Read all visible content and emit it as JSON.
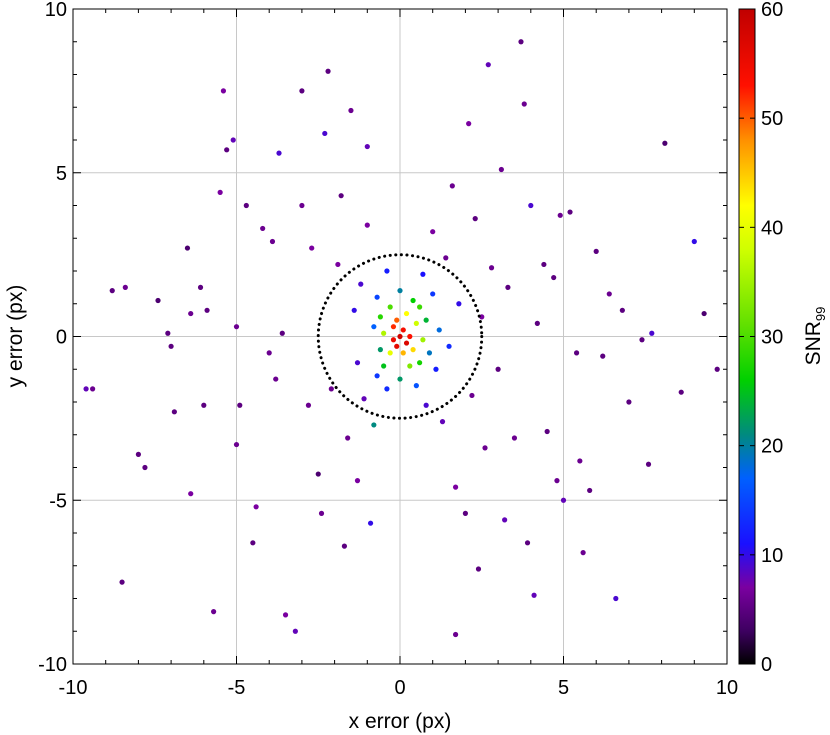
{
  "chart_data": {
    "type": "scatter",
    "title": "",
    "xlabel": "x error (px)",
    "ylabel": "y error (px)",
    "xlim": [
      -10,
      10
    ],
    "ylim": [
      -10,
      10
    ],
    "xticks": [
      -10,
      -5,
      0,
      5,
      10
    ],
    "yticks": [
      -10,
      -5,
      0,
      5,
      10
    ],
    "xtick_labels": [
      "-10",
      "-5",
      "0",
      "5",
      "10"
    ],
    "ytick_labels": [
      "-10",
      "-5",
      "0",
      "5",
      "10"
    ],
    "grid": true,
    "colorbar": {
      "label_main": "SNR",
      "label_sub": "99",
      "range": [
        0,
        60
      ],
      "ticks": [
        0,
        10,
        20,
        30,
        40,
        50,
        60
      ],
      "tick_labels": [
        "0",
        "10",
        "20",
        "30",
        "40",
        "50",
        "60"
      ],
      "colormap_stops": [
        {
          "value": 0,
          "color": "#000000"
        },
        {
          "value": 3,
          "color": "#3d0060"
        },
        {
          "value": 7,
          "color": "#7a00a0"
        },
        {
          "value": 11,
          "color": "#1a10ff"
        },
        {
          "value": 17,
          "color": "#0060ff"
        },
        {
          "value": 21,
          "color": "#008a80"
        },
        {
          "value": 26,
          "color": "#00d000"
        },
        {
          "value": 31,
          "color": "#60e000"
        },
        {
          "value": 38,
          "color": "#d0ff00"
        },
        {
          "value": 42,
          "color": "#ffff00"
        },
        {
          "value": 48,
          "color": "#ff9000"
        },
        {
          "value": 53,
          "color": "#ff1000"
        },
        {
          "value": 60,
          "color": "#c00000"
        }
      ]
    },
    "circle": {
      "center": [
        0,
        0
      ],
      "radius": 2.5,
      "style": "dotted",
      "color": "#000000"
    },
    "series": [
      {
        "points": [
          [
            -9.6,
            -1.6,
            8
          ],
          [
            -9.4,
            -1.6,
            6
          ],
          [
            -8.8,
            1.4,
            5
          ],
          [
            -8.4,
            1.5,
            6
          ],
          [
            -8.5,
            -7.5,
            5
          ],
          [
            -8.0,
            -3.6,
            5
          ],
          [
            -7.8,
            -4.0,
            5
          ],
          [
            -7.4,
            1.1,
            4
          ],
          [
            -7.1,
            0.1,
            5
          ],
          [
            -7.0,
            -0.3,
            5
          ],
          [
            -6.9,
            -2.3,
            5
          ],
          [
            -6.5,
            2.7,
            4
          ],
          [
            -6.4,
            0.7,
            6
          ],
          [
            -6.4,
            -4.8,
            7
          ],
          [
            -6.1,
            1.5,
            5
          ],
          [
            -6.0,
            -2.1,
            5
          ],
          [
            -5.9,
            0.8,
            5
          ],
          [
            -5.7,
            -8.4,
            6
          ],
          [
            -5.5,
            4.4,
            7
          ],
          [
            -5.4,
            7.5,
            7
          ],
          [
            -5.3,
            5.7,
            5
          ],
          [
            -5.1,
            6.0,
            8
          ],
          [
            -5.0,
            0.3,
            6
          ],
          [
            -5.0,
            -3.3,
            6
          ],
          [
            -4.9,
            -2.1,
            5
          ],
          [
            -4.7,
            4.0,
            5
          ],
          [
            -4.5,
            -6.3,
            5
          ],
          [
            -4.4,
            -5.2,
            7
          ],
          [
            -4.2,
            3.3,
            6
          ],
          [
            -4.0,
            -0.5,
            6
          ],
          [
            -3.9,
            2.9,
            6
          ],
          [
            -3.8,
            -1.3,
            6
          ],
          [
            -3.7,
            5.6,
            9
          ],
          [
            -3.6,
            0.1,
            5
          ],
          [
            -3.5,
            -8.5,
            7
          ],
          [
            -3.2,
            -9.0,
            8
          ],
          [
            -3.0,
            4.0,
            6
          ],
          [
            -3.0,
            7.5,
            5
          ],
          [
            -2.8,
            -2.1,
            6
          ],
          [
            -2.7,
            2.7,
            7
          ],
          [
            -2.5,
            -4.2,
            4
          ],
          [
            -2.4,
            -5.4,
            6
          ],
          [
            -2.3,
            6.2,
            9
          ],
          [
            -2.2,
            8.1,
            5
          ],
          [
            -2.1,
            -1.6,
            6
          ],
          [
            -1.9,
            2.2,
            7
          ],
          [
            -1.8,
            4.3,
            5
          ],
          [
            -1.7,
            -6.4,
            5
          ],
          [
            -1.6,
            -3.1,
            6
          ],
          [
            -1.5,
            6.9,
            6
          ],
          [
            -1.4,
            0.8,
            10
          ],
          [
            -1.3,
            -0.8,
            9
          ],
          [
            -1.3,
            -4.4,
            7
          ],
          [
            -1.2,
            1.6,
            9
          ],
          [
            -1.1,
            -1.9,
            8
          ],
          [
            -1.0,
            3.4,
            7
          ],
          [
            -1.0,
            5.8,
            8
          ],
          [
            -0.9,
            -5.7,
            10
          ],
          [
            -0.8,
            -2.7,
            21
          ],
          [
            -0.8,
            0.3,
            17
          ],
          [
            -0.7,
            -1.2,
            14
          ],
          [
            -0.7,
            1.2,
            15
          ],
          [
            -0.6,
            -0.4,
            22
          ],
          [
            -0.6,
            0.6,
            28
          ],
          [
            -0.5,
            -0.9,
            25
          ],
          [
            -0.5,
            0.1,
            36
          ],
          [
            -0.4,
            2.0,
            12
          ],
          [
            -0.4,
            -1.6,
            13
          ],
          [
            -0.3,
            0.9,
            30
          ],
          [
            -0.3,
            -0.5,
            40
          ],
          [
            -0.2,
            0.3,
            52
          ],
          [
            -0.2,
            -0.1,
            55
          ],
          [
            -0.1,
            0.5,
            50
          ],
          [
            -0.1,
            -0.3,
            56
          ],
          [
            0.0,
            0.0,
            58
          ],
          [
            0.0,
            1.4,
            20
          ],
          [
            0.0,
            -1.3,
            22
          ],
          [
            0.1,
            0.2,
            54
          ],
          [
            0.1,
            -0.5,
            46
          ],
          [
            0.2,
            0.7,
            42
          ],
          [
            0.2,
            -0.2,
            57
          ],
          [
            0.3,
            0.0,
            53
          ],
          [
            0.3,
            -0.9,
            33
          ],
          [
            0.4,
            1.1,
            26
          ],
          [
            0.4,
            -0.4,
            44
          ],
          [
            0.5,
            0.4,
            38
          ],
          [
            0.5,
            -1.5,
            16
          ],
          [
            0.6,
            0.9,
            29
          ],
          [
            0.6,
            -0.8,
            27
          ],
          [
            0.7,
            1.9,
            11
          ],
          [
            0.7,
            -0.1,
            35
          ],
          [
            0.8,
            -2.1,
            9
          ],
          [
            0.8,
            0.5,
            24
          ],
          [
            0.9,
            -0.5,
            19
          ],
          [
            1.0,
            1.3,
            14
          ],
          [
            1.0,
            3.2,
            7
          ],
          [
            1.1,
            -1.0,
            12
          ],
          [
            1.2,
            0.2,
            18
          ],
          [
            1.3,
            -2.6,
            8
          ],
          [
            1.4,
            2.4,
            6
          ],
          [
            1.5,
            -0.3,
            13
          ],
          [
            1.6,
            4.6,
            6
          ],
          [
            1.7,
            -4.6,
            7
          ],
          [
            1.7,
            -9.1,
            6
          ],
          [
            1.8,
            1.0,
            10
          ],
          [
            2.0,
            -5.4,
            5
          ],
          [
            2.1,
            6.5,
            7
          ],
          [
            2.2,
            -1.8,
            6
          ],
          [
            2.3,
            3.6,
            5
          ],
          [
            2.4,
            -7.1,
            5
          ],
          [
            2.5,
            0.6,
            7
          ],
          [
            2.6,
            -3.4,
            6
          ],
          [
            2.7,
            8.3,
            8
          ],
          [
            2.8,
            2.1,
            6
          ],
          [
            3.0,
            -1.0,
            5
          ],
          [
            3.1,
            5.1,
            6
          ],
          [
            3.2,
            -5.6,
            8
          ],
          [
            3.3,
            1.5,
            5
          ],
          [
            3.5,
            -3.1,
            6
          ],
          [
            3.7,
            9.0,
            5
          ],
          [
            3.8,
            7.1,
            6
          ],
          [
            3.9,
            -6.3,
            5
          ],
          [
            4.0,
            4.0,
            9
          ],
          [
            4.1,
            -7.9,
            8
          ],
          [
            4.2,
            0.4,
            5
          ],
          [
            4.4,
            2.2,
            5
          ],
          [
            4.5,
            -2.9,
            5
          ],
          [
            4.7,
            1.8,
            5
          ],
          [
            4.8,
            -4.4,
            6
          ],
          [
            4.9,
            3.7,
            6
          ],
          [
            5.0,
            -5.0,
            8
          ],
          [
            5.2,
            3.8,
            5
          ],
          [
            5.4,
            -0.5,
            5
          ],
          [
            5.5,
            -3.8,
            6
          ],
          [
            5.6,
            -6.6,
            6
          ],
          [
            5.8,
            -4.7,
            5
          ],
          [
            6.0,
            2.6,
            5
          ],
          [
            6.2,
            -0.6,
            5
          ],
          [
            6.4,
            1.3,
            6
          ],
          [
            6.6,
            -8.0,
            9
          ],
          [
            6.8,
            0.8,
            5
          ],
          [
            7.0,
            -2.0,
            5
          ],
          [
            7.4,
            -0.1,
            5
          ],
          [
            7.6,
            -3.9,
            5
          ],
          [
            7.7,
            0.1,
            9
          ],
          [
            8.1,
            5.9,
            4
          ],
          [
            8.6,
            -1.7,
            5
          ],
          [
            9.0,
            2.9,
            10
          ],
          [
            9.3,
            0.7,
            4
          ],
          [
            9.7,
            -1.0,
            5
          ]
        ]
      }
    ]
  }
}
